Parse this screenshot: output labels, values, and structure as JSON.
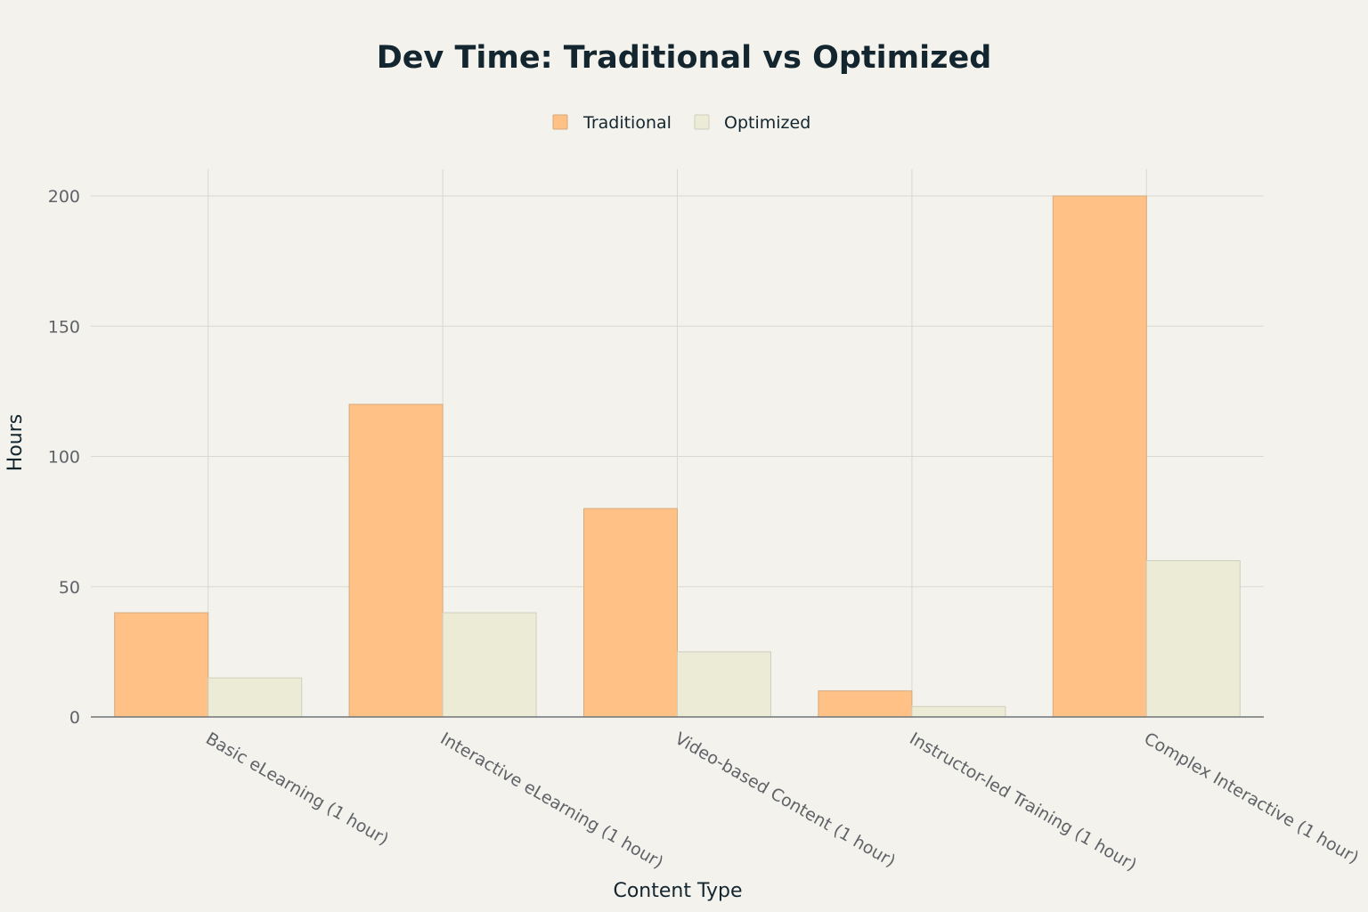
{
  "chart_data": {
    "type": "bar",
    "title": "Dev Time: Traditional vs Optimized",
    "xlabel": "Content Type",
    "ylabel": "Hours",
    "categories": [
      "Basic eLearning (1 hour)",
      "Interactive eLearning (1 hour)",
      "Video-based Content (1 hour)",
      "Instructor-led Training (1 hour)",
      "Complex Interactive (1 hour)"
    ],
    "series": [
      {
        "name": "Traditional",
        "values": [
          40,
          120,
          80,
          10,
          200
        ],
        "color": "#ffc185"
      },
      {
        "name": "Optimized",
        "values": [
          15,
          40,
          25,
          4,
          60
        ],
        "color": "#ecebd5"
      }
    ],
    "ylim": [
      0,
      210
    ],
    "yticks": [
      0,
      50,
      100,
      150,
      200
    ],
    "grid": true,
    "legend_position": "top-center"
  }
}
